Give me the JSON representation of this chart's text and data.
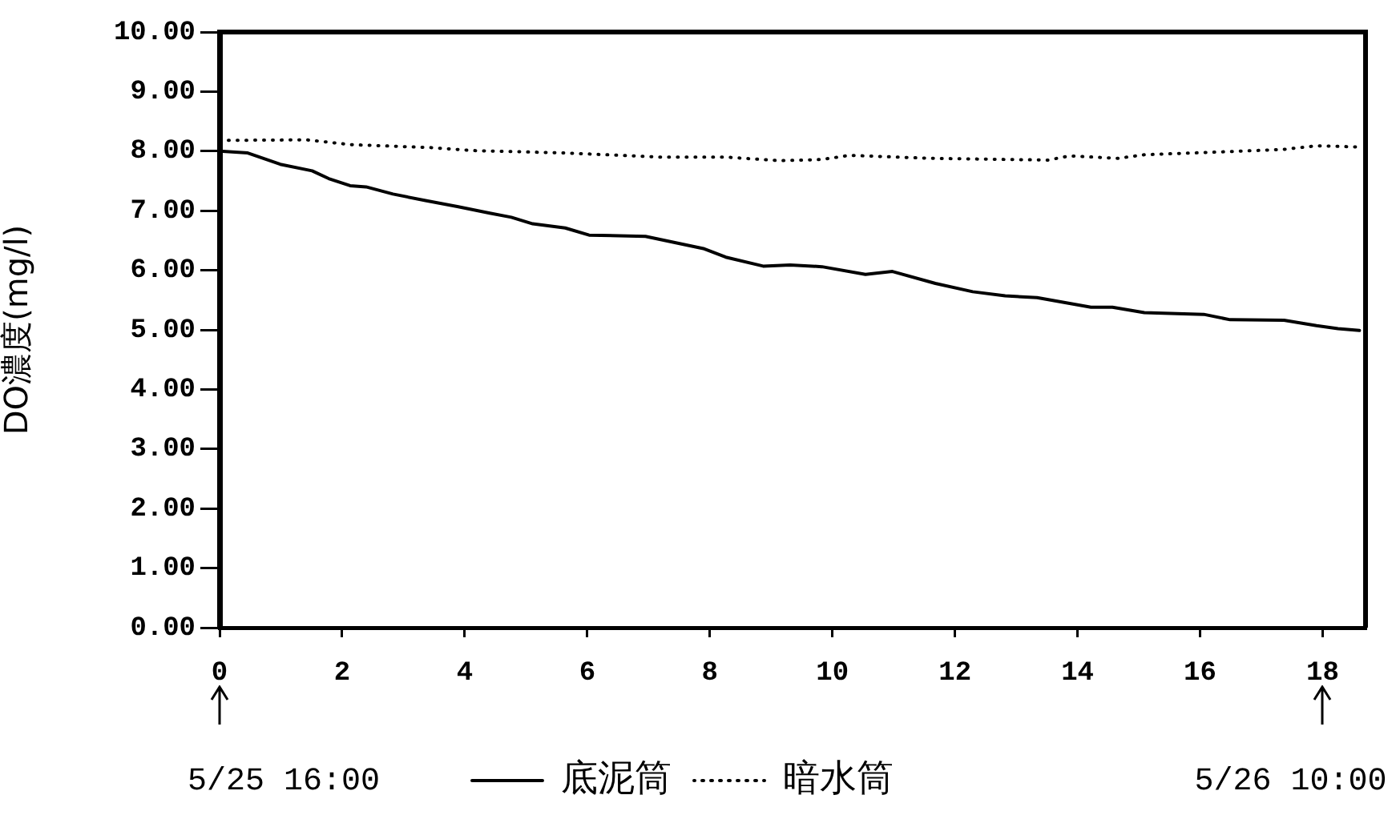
{
  "chart_data": {
    "type": "line",
    "ylabel": "DO濃度(mg/l)",
    "xlim": [
      0,
      18.7
    ],
    "ylim": [
      0,
      10
    ],
    "xticks": [
      0,
      2,
      4,
      6,
      8,
      10,
      12,
      14,
      16,
      18
    ],
    "yticks": [
      {
        "value": 0,
        "label": "0.00"
      },
      {
        "value": 1,
        "label": "1.00"
      },
      {
        "value": 2,
        "label": "2.00"
      },
      {
        "value": 3,
        "label": "3.00"
      },
      {
        "value": 4,
        "label": "4.00"
      },
      {
        "value": 5,
        "label": "5.00"
      },
      {
        "value": 6,
        "label": "6.00"
      },
      {
        "value": 7,
        "label": "7.00"
      },
      {
        "value": 8,
        "label": "8.00"
      },
      {
        "value": 9,
        "label": "9.00"
      },
      {
        "value": 10,
        "label": "10.00"
      }
    ],
    "legend": "bottom",
    "annotations": [
      "5/25 16:00",
      "5/26 10:00"
    ],
    "series": [
      {
        "name": "底泥筒",
        "color": "#000000",
        "line_style": "solid",
        "x": [
          0,
          0.46,
          0.99,
          1.51,
          1.78,
          2.13,
          2.39,
          2.83,
          3.36,
          3.88,
          4.41,
          4.76,
          5.11,
          5.64,
          6.03,
          6.95,
          7.91,
          8.26,
          8.87,
          9.31,
          9.83,
          10.54,
          10.98,
          11.68,
          12.29,
          12.82,
          13.34,
          14.22,
          14.57,
          15.09,
          16.06,
          16.49,
          17.37,
          17.9,
          18.25,
          18.6
        ],
        "values": [
          8.0,
          7.97,
          7.78,
          7.67,
          7.54,
          7.42,
          7.4,
          7.28,
          7.17,
          7.07,
          6.96,
          6.89,
          6.78,
          6.71,
          6.59,
          6.57,
          6.36,
          6.22,
          6.07,
          6.09,
          6.06,
          5.93,
          5.98,
          5.78,
          5.64,
          5.57,
          5.54,
          5.38,
          5.38,
          5.29,
          5.26,
          5.17,
          5.16,
          5.07,
          5.02,
          4.99
        ]
      },
      {
        "name": "暗水筒",
        "color": "#000000",
        "line_style": "dotted",
        "x": [
          0,
          1.42,
          2.13,
          3.44,
          4.14,
          5.63,
          7.21,
          8.26,
          9.14,
          9.83,
          10.28,
          11.59,
          13.52,
          13.87,
          14.66,
          15.09,
          16.41,
          17.37,
          17.9,
          18.6
        ],
        "values": [
          8.18,
          8.19,
          8.11,
          8.06,
          8.01,
          7.97,
          7.9,
          7.9,
          7.84,
          7.86,
          7.93,
          7.88,
          7.85,
          7.92,
          7.88,
          7.94,
          7.99,
          8.03,
          8.09,
          8.07
        ]
      }
    ]
  }
}
